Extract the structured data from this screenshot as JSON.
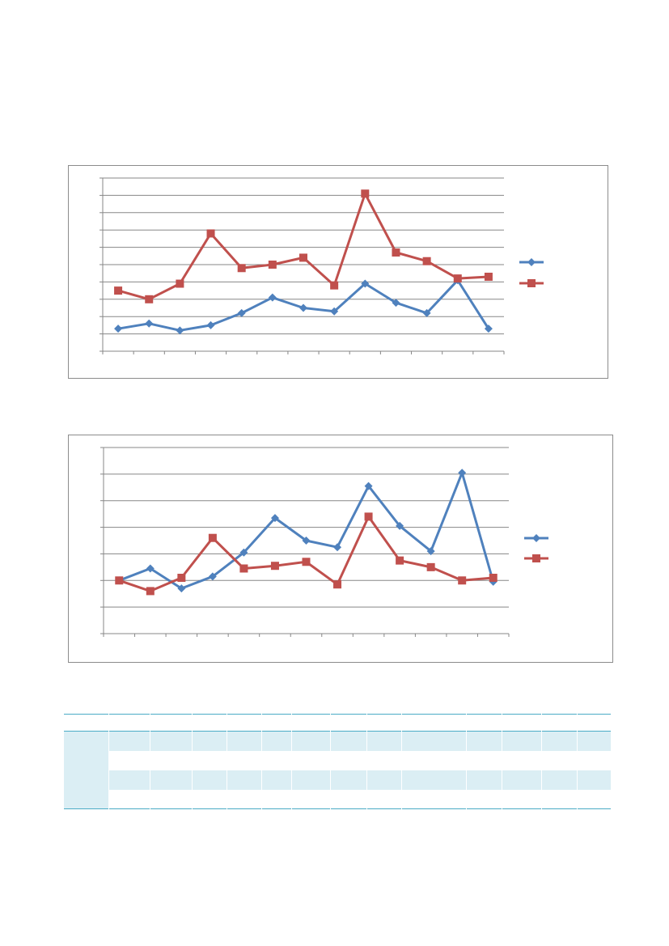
{
  "chart_data": [
    {
      "type": "line",
      "title": "",
      "xlabel": "",
      "ylabel": "",
      "ylim": [
        0,
        10
      ],
      "y_tick_count": 11,
      "x_categories_count": 13,
      "grid": true,
      "legend": "right",
      "series": [
        {
          "color": "#4f81bd",
          "marker": "diamond",
          "values": [
            1.3,
            1.6,
            1.2,
            1.5,
            2.2,
            3.1,
            2.5,
            2.3,
            3.9,
            2.8,
            2.2,
            4.1,
            1.3
          ]
        },
        {
          "color": "#c0504d",
          "marker": "square",
          "values": [
            3.5,
            3.0,
            3.9,
            6.8,
            4.8,
            5.0,
            5.4,
            3.8,
            9.1,
            5.7,
            5.2,
            4.2,
            4.3
          ]
        }
      ]
    },
    {
      "type": "line",
      "title": "",
      "xlabel": "",
      "ylabel": "",
      "ylim": [
        0,
        7
      ],
      "y_tick_count": 8,
      "x_categories_count": 13,
      "grid": true,
      "legend": "right",
      "series": [
        {
          "color": "#4f81bd",
          "marker": "diamond",
          "values": [
            2.0,
            2.45,
            1.7,
            2.15,
            3.05,
            4.35,
            3.5,
            3.25,
            5.55,
            4.05,
            3.1,
            6.05,
            1.95
          ]
        },
        {
          "color": "#c0504d",
          "marker": "square",
          "values": [
            2.0,
            1.6,
            2.1,
            3.6,
            2.45,
            2.55,
            2.7,
            1.85,
            4.4,
            2.75,
            2.5,
            2.0,
            2.1
          ]
        }
      ]
    }
  ]
}
